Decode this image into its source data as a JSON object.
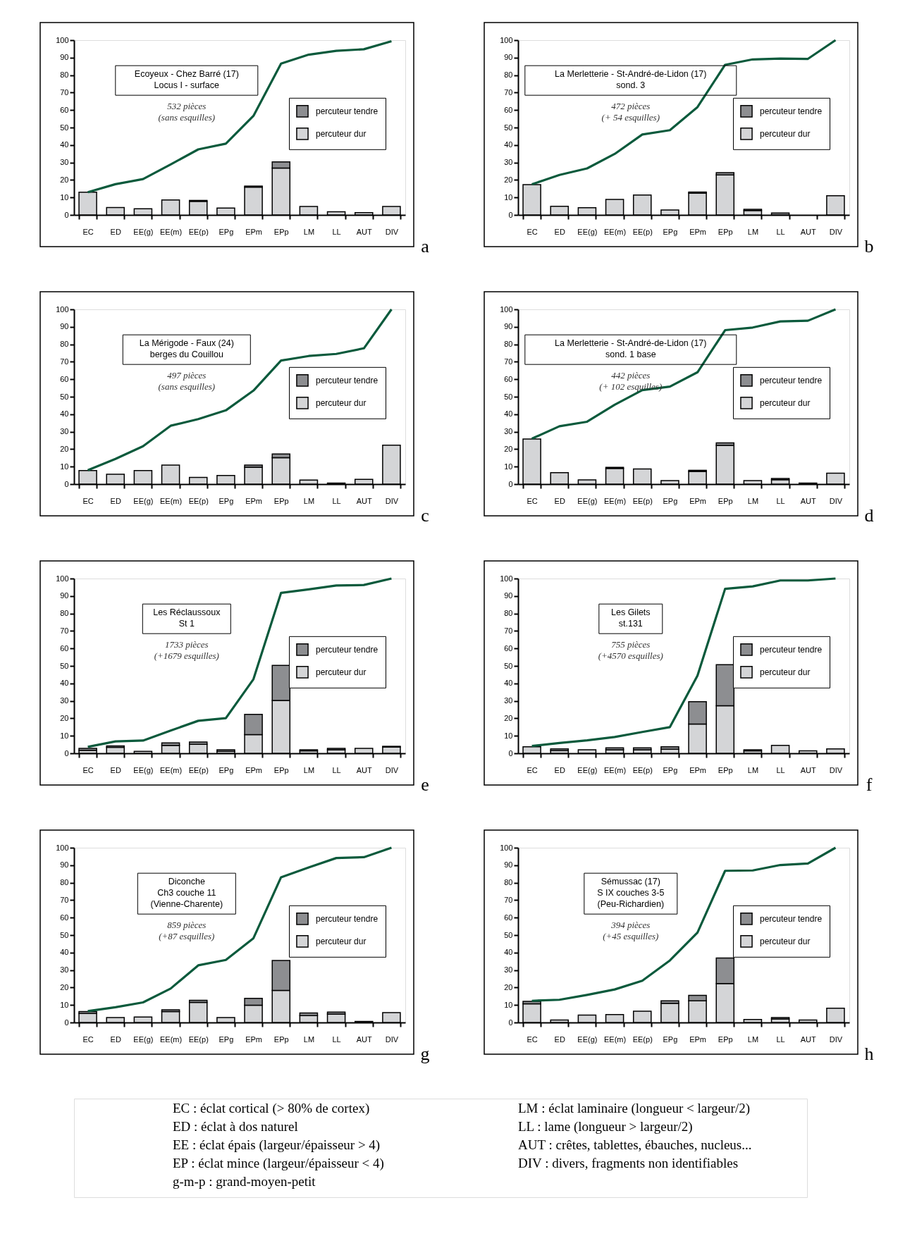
{
  "chart_data": [
    {
      "type": "bar",
      "stacked": true,
      "title": "Ecoyeux - Chez Barré  (17)\nLocus I - surface",
      "subtitle": "532 pièces\n(sans esquilles)",
      "categories": [
        "EC",
        "ED",
        "EE(g)",
        "EE(m)",
        "EE(p)",
        "EPg",
        "EPm",
        "EPp",
        "LM",
        "LL",
        "AUT",
        "DIV"
      ],
      "ylim": [
        0,
        100
      ],
      "yticks": [
        0,
        10,
        20,
        30,
        40,
        50,
        60,
        70,
        80,
        90,
        100
      ],
      "legend": "right",
      "annotations": [
        "a"
      ],
      "series": [
        {
          "name": "percuteur dur",
          "color": "#d4d5d7",
          "values": [
            13,
            4.2,
            3.5,
            8.6,
            7.8,
            3.9,
            15.9,
            26.8,
            4.8,
            1.8,
            1.3,
            4.8
          ]
        },
        {
          "name": "percuteur tendre",
          "color": "#8d8e91",
          "values": [
            null,
            null,
            null,
            null,
            0.5,
            null,
            0.6,
            3.5,
            null,
            null,
            null,
            null
          ]
        },
        {
          "type": "line",
          "color": "#0b5a3c",
          "values": [
            13,
            17.6,
            20.5,
            28.9,
            37.5,
            40.8,
            56.7,
            86.6,
            91.7,
            93.9,
            94.8,
            99.4
          ]
        }
      ]
    },
    {
      "type": "bar",
      "stacked": true,
      "title": "La Merletterie  - St-André-de-Lidon (17)\nsond. 3",
      "subtitle": "472 pièces\n(+ 54 esquilles)",
      "categories": [
        "EC",
        "ED",
        "EE(g)",
        "EE(m)",
        "EE(p)",
        "EPg",
        "EPm",
        "EPp",
        "LM",
        "LL",
        "AUT",
        "DIV"
      ],
      "ylim": [
        0,
        100
      ],
      "yticks": [
        0,
        10,
        20,
        30,
        40,
        50,
        60,
        70,
        80,
        90,
        100
      ],
      "legend": "right",
      "annotations": [
        "b"
      ],
      "series": [
        {
          "name": "percuteur dur",
          "color": "#d4d5d7",
          "values": [
            17.3,
            4.9,
            4.1,
            8.9,
            11.4,
            2.8,
            12.5,
            22.9,
            2.5,
            null,
            null,
            11.0
          ]
        },
        {
          "name": "percuteur tendre",
          "color": "#8d8e91",
          "values": [
            null,
            null,
            null,
            null,
            null,
            null,
            0.6,
            1.3,
            0.7,
            1.1,
            null,
            null
          ]
        },
        {
          "type": "line",
          "color": "#0b5a3c",
          "values": [
            17.5,
            22.9,
            26.6,
            34.9,
            46.0,
            48.5,
            61.7,
            85.9,
            89.0,
            89.5,
            89.3,
            100
          ]
        }
      ]
    },
    {
      "type": "bar",
      "stacked": true,
      "title": "La Mérigode - Faux (24)\nberges du Couillou",
      "subtitle": "497 pièces\n(sans esquilles)",
      "categories": [
        "EC",
        "ED",
        "EE(g)",
        "EE(m)",
        "EE(p)",
        "EPg",
        "EPm",
        "EPp",
        "LM",
        "LL",
        "AUT",
        "DIV"
      ],
      "ylim": [
        0,
        100
      ],
      "yticks": [
        0,
        10,
        20,
        30,
        40,
        50,
        60,
        70,
        80,
        90,
        100
      ],
      "legend": "right",
      "annotations": [
        "c"
      ],
      "series": [
        {
          "name": "percuteur dur",
          "color": "#d4d5d7",
          "values": [
            7.8,
            5.6,
            7.8,
            10.9,
            3.8,
            4.9,
            9.7,
            15.1,
            2.3,
            0.6,
            2.7,
            22.3
          ]
        },
        {
          "name": "percuteur tendre",
          "color": "#8d8e91",
          "values": [
            null,
            null,
            null,
            null,
            null,
            null,
            1.2,
            2.1,
            null,
            null,
            null,
            null
          ]
        },
        {
          "type": "line",
          "color": "#0b5a3c",
          "values": [
            8.0,
            14.4,
            21.7,
            33.4,
            37.2,
            42.2,
            53.5,
            70.7,
            73.3,
            74.5,
            77.7,
            100
          ]
        }
      ]
    },
    {
      "type": "bar",
      "stacked": true,
      "title": "La Merletterie  - St-André-de-Lidon (17)\nsond. 1 base",
      "subtitle": "442 pièces\n(+ 102 esquilles)",
      "categories": [
        "EC",
        "ED",
        "EE(g)",
        "EE(m)",
        "EE(p)",
        "EPg",
        "EPm",
        "EPp",
        "LM",
        "LL",
        "AUT",
        "DIV"
      ],
      "ylim": [
        0,
        100
      ],
      "yticks": [
        0,
        10,
        20,
        30,
        40,
        50,
        60,
        70,
        80,
        90,
        100
      ],
      "legend": "right",
      "annotations": [
        "d"
      ],
      "series": [
        {
          "name": "percuteur dur",
          "color": "#d4d5d7",
          "values": [
            25.8,
            6.6,
            2.4,
            9.0,
            8.7,
            2.0,
            7.3,
            22.2,
            2.0,
            2.5,
            0.6,
            6.2
          ]
        },
        {
          "name": "percuteur tendre",
          "color": "#8d8e91",
          "values": [
            null,
            null,
            null,
            0.6,
            null,
            null,
            0.6,
            1.4,
            null,
            0.7,
            null,
            null
          ]
        },
        {
          "type": "line",
          "color": "#0b5a3c",
          "values": [
            26,
            33.1,
            35.7,
            45.4,
            53.8,
            55.8,
            64.0,
            88.1,
            89.6,
            93.1,
            93.5,
            100
          ]
        }
      ]
    },
    {
      "type": "bar",
      "stacked": true,
      "title": "Les Réclaussoux\nSt 1",
      "subtitle": "1733 pièces\n(+1679 esquilles)",
      "categories": [
        "EC",
        "ED",
        "EE(g)",
        "EE(m)",
        "EE(p)",
        "EPg",
        "EPm",
        "EPp",
        "LM",
        "LL",
        "AUT",
        "DIV"
      ],
      "ylim": [
        0,
        100
      ],
      "yticks": [
        0,
        10,
        20,
        30,
        40,
        50,
        60,
        70,
        80,
        90,
        100
      ],
      "legend": "right",
      "annotations": [
        "e"
      ],
      "series": [
        {
          "name": "percuteur dur",
          "color": "#d4d5d7",
          "values": [
            1.7,
            3.4,
            1.1,
            4.5,
            5.1,
            1.1,
            10.7,
            30.2,
            1.4,
            2.0,
            2.8,
            3.6
          ]
        },
        {
          "name": "percuteur tendre",
          "color": "#8d8e91",
          "values": [
            1.1,
            0.8,
            null,
            1.4,
            1.4,
            0.9,
            11.6,
            20.1,
            0.6,
            0.8,
            null,
            0.4
          ]
        },
        {
          "type": "line",
          "color": "#0b5a3c",
          "values": [
            3.7,
            6.8,
            7.3,
            13.0,
            18.6,
            20.1,
            42.4,
            91.8,
            93.8,
            96.0,
            96.3,
            100
          ]
        }
      ]
    },
    {
      "type": "bar",
      "stacked": true,
      "title": "Les Gilets\nst.131",
      "subtitle": "755 pièces\n(+4570 esquilles)",
      "categories": [
        "EC",
        "ED",
        "EE(g)",
        "EE(m)",
        "EE(p)",
        "EPg",
        "EPm",
        "EPp",
        "LM",
        "LL",
        "AUT",
        "DIV"
      ],
      "ylim": [
        0,
        100
      ],
      "yticks": [
        0,
        10,
        20,
        30,
        40,
        50,
        60,
        70,
        80,
        90,
        100
      ],
      "legend": "right",
      "annotations": [
        "f"
      ],
      "series": [
        {
          "name": "percuteur dur",
          "color": "#d4d5d7",
          "values": [
            3.7,
            1.5,
            2.0,
            2.0,
            2.0,
            2.3,
            16.7,
            27.2,
            1.4,
            4.5,
            1.4,
            2.5
          ]
        },
        {
          "name": "percuteur tendre",
          "color": "#8d8e91",
          "values": [
            null,
            1.0,
            null,
            1.1,
            1.1,
            1.4,
            12.8,
            23.5,
            0.6,
            null,
            null,
            null
          ]
        },
        {
          "type": "line",
          "color": "#0b5a3c",
          "values": [
            4.2,
            5.9,
            7.4,
            9.3,
            12.2,
            15.0,
            44.5,
            94.1,
            95.5,
            98.9,
            98.9,
            100
          ]
        }
      ]
    },
    {
      "type": "bar",
      "stacked": true,
      "title": "Diconche\nCh3 couche 11\n(Vienne-Charente)",
      "subtitle": "859 pièces\n(+87 esquilles)",
      "categories": [
        "EC",
        "ED",
        "EE(g)",
        "EE(m)",
        "EE(p)",
        "EPg",
        "EPm",
        "EPp",
        "LM",
        "LL",
        "AUT",
        "DIV"
      ],
      "ylim": [
        0,
        100
      ],
      "yticks": [
        0,
        10,
        20,
        30,
        40,
        50,
        60,
        70,
        80,
        90,
        100
      ],
      "legend": "right",
      "annotations": [
        "g"
      ],
      "series": [
        {
          "name": "percuteur dur",
          "color": "#d4d5d7",
          "values": [
            5.1,
            2.8,
            3.1,
            6.2,
            11.5,
            2.8,
            9.9,
            18.3,
            3.9,
            4.8,
            0.6,
            5.6
          ]
        },
        {
          "name": "percuteur tendre",
          "color": "#8d8e91",
          "values": [
            1.1,
            null,
            null,
            1.1,
            1.2,
            null,
            3.9,
            17.2,
            1.5,
            1.1,
            null,
            null
          ]
        },
        {
          "type": "line",
          "color": "#0b5a3c",
          "values": [
            6.5,
            8.7,
            11.5,
            19.4,
            32.7,
            35.8,
            48.2,
            83.1,
            88.7,
            94.1,
            94.6,
            100
          ]
        }
      ]
    },
    {
      "type": "bar",
      "stacked": true,
      "title": "Sémussac (17)\nS IX couches 3-5\n(Peu-Richardien)",
      "subtitle": "394 pièces\n(+45 esquilles)",
      "categories": [
        "EC",
        "ED",
        "EE(g)",
        "EE(m)",
        "EE(p)",
        "EPg",
        "EPm",
        "EPp",
        "LM",
        "LL",
        "AUT",
        "DIV"
      ],
      "ylim": [
        0,
        100
      ],
      "yticks": [
        0,
        10,
        20,
        30,
        40,
        50,
        60,
        70,
        80,
        90,
        100
      ],
      "legend": "right",
      "annotations": [
        "h"
      ],
      "series": [
        {
          "name": "percuteur dur",
          "color": "#d4d5d7",
          "values": [
            10.7,
            1.4,
            4.2,
            4.5,
            6.5,
            11.0,
            12.4,
            22.3,
            1.7,
            2.0,
            1.4,
            8.2
          ]
        },
        {
          "name": "percuteur tendre",
          "color": "#8d8e91",
          "values": [
            1.4,
            null,
            null,
            null,
            null,
            1.4,
            3.1,
            14.6,
            null,
            0.8,
            null,
            null
          ]
        },
        {
          "type": "line",
          "color": "#0b5a3c",
          "values": [
            12.4,
            13.0,
            15.8,
            18.9,
            23.9,
            35.5,
            51.5,
            86.8,
            87.0,
            90.1,
            91.0,
            100
          ]
        }
      ]
    },
    {
      "type": "other",
      "annotations": [
        "EC : éclat cortical (> 80% de cortex)",
        "ED : éclat à dos naturel",
        "EE : éclat épais (largeur/épaisseur > 4)",
        "EP : éclat mince (largeur/épaisseur < 4)",
        "g-m-p : grand-moyen-petit",
        "LM : éclat laminaire (longueur < largeur/2)",
        "LL : lame (longueur > largeur/2)",
        "AUT : crêtes, tablettes, ébauches, nucleus...",
        "DIV : divers, fragments non identifiables"
      ]
    }
  ]
}
